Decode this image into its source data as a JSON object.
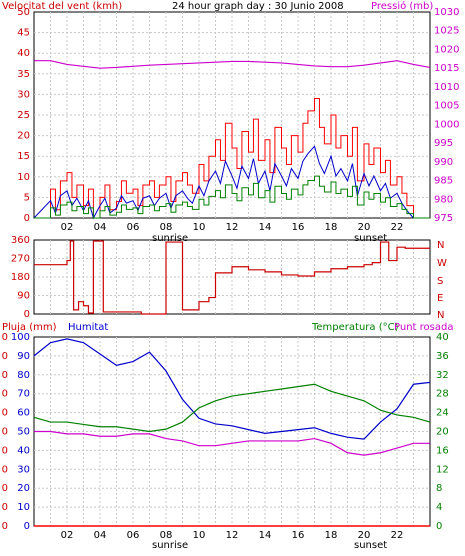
{
  "header": {
    "title": "24 hour graph day : 30 Junio 2008",
    "wind_label": "Velocitat del vent (kmh)",
    "pressure_label": "Pressió (mb)"
  },
  "direction_labels": [
    "N",
    "W",
    "S",
    "E",
    "N"
  ],
  "bottom_labels": {
    "rain": "Pluja (mm)",
    "humidity": "Humitat",
    "temperature": "Temperatura (°C)",
    "dewpoint": "Punt rosada"
  },
  "x_ticks": [
    "02",
    "04",
    "06",
    "08",
    "10",
    "12",
    "14",
    "16",
    "18",
    "20",
    "22"
  ],
  "events": {
    "sunrise": "sunrise",
    "sunset": "sunset"
  },
  "colors": {
    "wind_gust": "#ff0000",
    "wind_avg": "#0000cc",
    "wind_min": "#008000",
    "pressure": "#cc00cc",
    "direction": "#cc0000",
    "humidity": "#0000cc",
    "temperature": "#008000",
    "dewpoint": "#cc00cc",
    "rain": "#ff0000",
    "grid": "#c8c8c8"
  },
  "chart_data": [
    {
      "type": "line",
      "x_unit": "hour",
      "xlim": [
        0,
        24
      ],
      "ylim_left": [
        0,
        50
      ],
      "yticks_left": [
        0,
        5,
        10,
        15,
        20,
        25,
        30,
        35,
        40,
        45,
        50
      ],
      "ylim_right": [
        975,
        1030
      ],
      "yticks_right": [
        975,
        980,
        985,
        990,
        995,
        1000,
        1005,
        1010,
        1015,
        1020,
        1025,
        1030
      ],
      "series": [
        {
          "name": "Velocitat del vent (kmh)",
          "axis": "left",
          "style": "step",
          "x": [
            0,
            1,
            1.3,
            1.6,
            2,
            2.3,
            2.6,
            3,
            3.3,
            3.6,
            4,
            4.3,
            4.6,
            5,
            5.3,
            5.6,
            6,
            6.3,
            6.6,
            7,
            7.3,
            7.6,
            8,
            8.3,
            8.6,
            9,
            9.3,
            9.6,
            10,
            10.3,
            10.6,
            11,
            11.3,
            11.6,
            12,
            12.3,
            12.6,
            13,
            13.3,
            13.6,
            14,
            14.3,
            14.6,
            15,
            15.3,
            15.6,
            16,
            16.3,
            16.6,
            17,
            17.3,
            17.6,
            18,
            18.3,
            18.6,
            19,
            19.3,
            19.6,
            20,
            20.3,
            20.6,
            21,
            21.3,
            21.6,
            22,
            22.3,
            22.6,
            23
          ],
          "values": [
            0,
            7,
            2,
            9,
            11,
            5,
            8,
            3,
            7,
            0,
            5,
            8,
            2,
            4,
            9,
            6,
            7,
            3,
            8,
            9,
            5,
            8,
            10,
            4,
            9,
            11,
            8,
            6,
            13,
            9,
            15,
            19,
            14,
            23,
            17,
            12,
            21,
            16,
            24,
            14,
            19,
            11,
            22,
            17,
            13,
            20,
            16,
            23,
            26,
            29,
            22,
            18,
            25,
            17,
            20,
            15,
            22,
            9,
            18,
            13,
            17,
            11,
            14,
            8,
            10,
            6,
            3,
            0
          ]
        },
        {
          "name": "Pressió (mb)",
          "axis": "right",
          "style": "line",
          "x": [
            0,
            1,
            2,
            3,
            4,
            5,
            6,
            7,
            8,
            9,
            10,
            11,
            12,
            13,
            14,
            15,
            16,
            17,
            18,
            19,
            20,
            21,
            22,
            23,
            24
          ],
          "values": [
            1017,
            1017,
            1016,
            1015.5,
            1015,
            1015.2,
            1015.5,
            1015.8,
            1016,
            1016.2,
            1016.4,
            1016.6,
            1016.8,
            1016.8,
            1016.6,
            1016.4,
            1016,
            1015.6,
            1015.4,
            1015.4,
            1015.8,
            1016.4,
            1017,
            1016,
            1015.2
          ]
        }
      ]
    },
    {
      "type": "line",
      "x_unit": "hour",
      "xlim": [
        0,
        24
      ],
      "ylim": [
        0,
        360
      ],
      "yticks": [
        0,
        90,
        180,
        270,
        360
      ],
      "series": [
        {
          "name": "direction",
          "style": "step",
          "x": [
            0,
            2,
            2.2,
            2.4,
            2.7,
            3,
            3.3,
            3.6,
            4,
            4.2,
            6,
            6.5,
            7,
            7.8,
            8,
            8.8,
            9,
            10,
            10.6,
            11,
            12,
            13,
            14,
            15,
            16,
            17,
            18,
            19,
            20,
            20.5,
            21,
            21.5,
            22,
            22.5,
            23,
            24
          ],
          "values": [
            240,
            260,
            355,
            20,
            60,
            40,
            5,
            355,
            355,
            10,
            10,
            0,
            0,
            0,
            350,
            350,
            20,
            60,
            80,
            200,
            230,
            215,
            205,
            190,
            185,
            205,
            220,
            230,
            240,
            250,
            350,
            260,
            325,
            320,
            320,
            320
          ]
        }
      ]
    },
    {
      "type": "line",
      "x_unit": "hour",
      "xlim": [
        0,
        24
      ],
      "ylim_left": [
        0,
        100
      ],
      "yticks_left": [
        0,
        10,
        20,
        30,
        40,
        50,
        60,
        70,
        80,
        90,
        100
      ],
      "ylim_right": [
        0,
        40
      ],
      "yticks_right": [
        0,
        4,
        8,
        12,
        16,
        20,
        24,
        28,
        32,
        36,
        40
      ],
      "series": [
        {
          "name": "Humitat",
          "axis": "left",
          "style": "line",
          "x": [
            0,
            1,
            2,
            3,
            4,
            5,
            6,
            7,
            8,
            9,
            10,
            11,
            12,
            13,
            14,
            15,
            16,
            17,
            18,
            19,
            20,
            21,
            22,
            23,
            24
          ],
          "values": [
            90,
            97,
            99,
            97,
            91,
            85,
            87,
            92,
            82,
            67,
            57,
            54,
            53,
            51,
            49,
            50,
            51,
            52,
            49,
            47,
            46,
            55,
            62,
            75,
            76
          ]
        },
        {
          "name": "Temperatura (°C)",
          "axis": "right",
          "style": "line",
          "x": [
            0,
            1,
            2,
            3,
            4,
            5,
            6,
            7,
            8,
            9,
            10,
            11,
            12,
            13,
            14,
            15,
            16,
            17,
            18,
            19,
            20,
            21,
            22,
            23,
            24
          ],
          "values": [
            23,
            22,
            22,
            21.5,
            21,
            21,
            20.5,
            20,
            20.5,
            22,
            25,
            26.5,
            27.5,
            28,
            28.5,
            29,
            29.5,
            30,
            28.5,
            27.5,
            26.5,
            24.5,
            23.5,
            23,
            22
          ]
        },
        {
          "name": "Punt rosada",
          "axis": "right",
          "style": "line",
          "x": [
            0,
            1,
            2,
            3,
            4,
            5,
            6,
            7,
            8,
            9,
            10,
            11,
            12,
            13,
            14,
            15,
            16,
            17,
            18,
            19,
            20,
            21,
            22,
            23,
            24
          ],
          "values": [
            20,
            20,
            19.5,
            19.5,
            19,
            19,
            19.5,
            19.5,
            18.5,
            18,
            17,
            17,
            17.5,
            18,
            18,
            18,
            18,
            18.5,
            17.5,
            15.5,
            15,
            15.5,
            16.5,
            17.5,
            17.5
          ]
        },
        {
          "name": "Pluja (mm)",
          "axis": "rain",
          "style": "line",
          "x": [
            0,
            24
          ],
          "values": [
            0,
            0
          ]
        }
      ]
    }
  ]
}
